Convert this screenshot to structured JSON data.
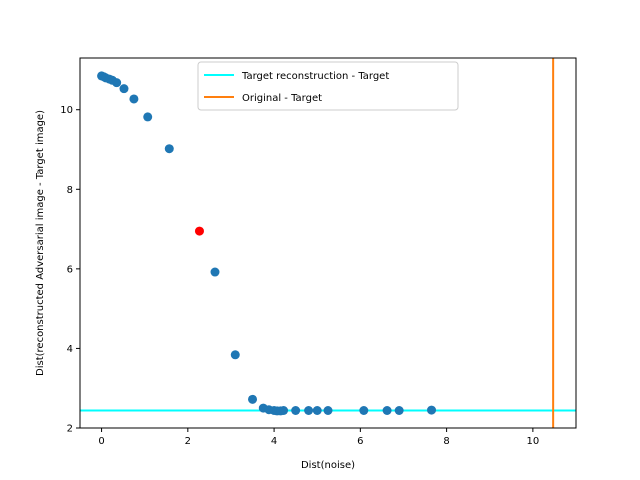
{
  "chart_data": {
    "type": "scatter",
    "title": "",
    "xlabel": "Dist(noise)",
    "ylabel": "Dist(reconstructed Adversarial image - Target image)",
    "xlim": [
      -0.5,
      11
    ],
    "ylim": [
      2.0,
      11.3
    ],
    "xticks": [
      0,
      2,
      4,
      6,
      8,
      10
    ],
    "yticks": [
      2,
      4,
      6,
      8,
      10
    ],
    "grid": false,
    "legend_position": "top-center",
    "scatter_color": "#1f77b4",
    "highlight_color": "#ff0000",
    "points": [
      {
        "x": 0.0,
        "y": 10.85
      },
      {
        "x": 0.05,
        "y": 10.83
      },
      {
        "x": 0.1,
        "y": 10.8
      },
      {
        "x": 0.18,
        "y": 10.77
      },
      {
        "x": 0.25,
        "y": 10.74
      },
      {
        "x": 0.35,
        "y": 10.68
      },
      {
        "x": 0.52,
        "y": 10.53
      },
      {
        "x": 0.75,
        "y": 10.27
      },
      {
        "x": 1.07,
        "y": 9.82
      },
      {
        "x": 1.57,
        "y": 9.02
      },
      {
        "x": 2.63,
        "y": 5.92
      },
      {
        "x": 3.1,
        "y": 3.84
      },
      {
        "x": 3.5,
        "y": 2.72
      },
      {
        "x": 3.75,
        "y": 2.5
      },
      {
        "x": 3.88,
        "y": 2.46
      },
      {
        "x": 4.0,
        "y": 2.44
      },
      {
        "x": 4.07,
        "y": 2.43
      },
      {
        "x": 4.15,
        "y": 2.43
      },
      {
        "x": 4.22,
        "y": 2.44
      },
      {
        "x": 4.5,
        "y": 2.44
      },
      {
        "x": 4.8,
        "y": 2.44
      },
      {
        "x": 5.0,
        "y": 2.44
      },
      {
        "x": 5.25,
        "y": 2.44
      },
      {
        "x": 6.08,
        "y": 2.44
      },
      {
        "x": 6.62,
        "y": 2.44
      },
      {
        "x": 6.9,
        "y": 2.44
      },
      {
        "x": 7.65,
        "y": 2.45
      }
    ],
    "highlight_points": [
      {
        "x": 2.27,
        "y": 6.95
      }
    ],
    "hline": {
      "y": 2.44,
      "color": "#00ffff",
      "name": "Target reconstruction - Target"
    },
    "vline": {
      "x": 10.47,
      "color": "#ff7f0e",
      "name": "Original - Target"
    },
    "legend": [
      {
        "label": "Target reconstruction - Target",
        "color": "#00ffff"
      },
      {
        "label": "Original - Target",
        "color": "#ff7f0e"
      }
    ]
  }
}
